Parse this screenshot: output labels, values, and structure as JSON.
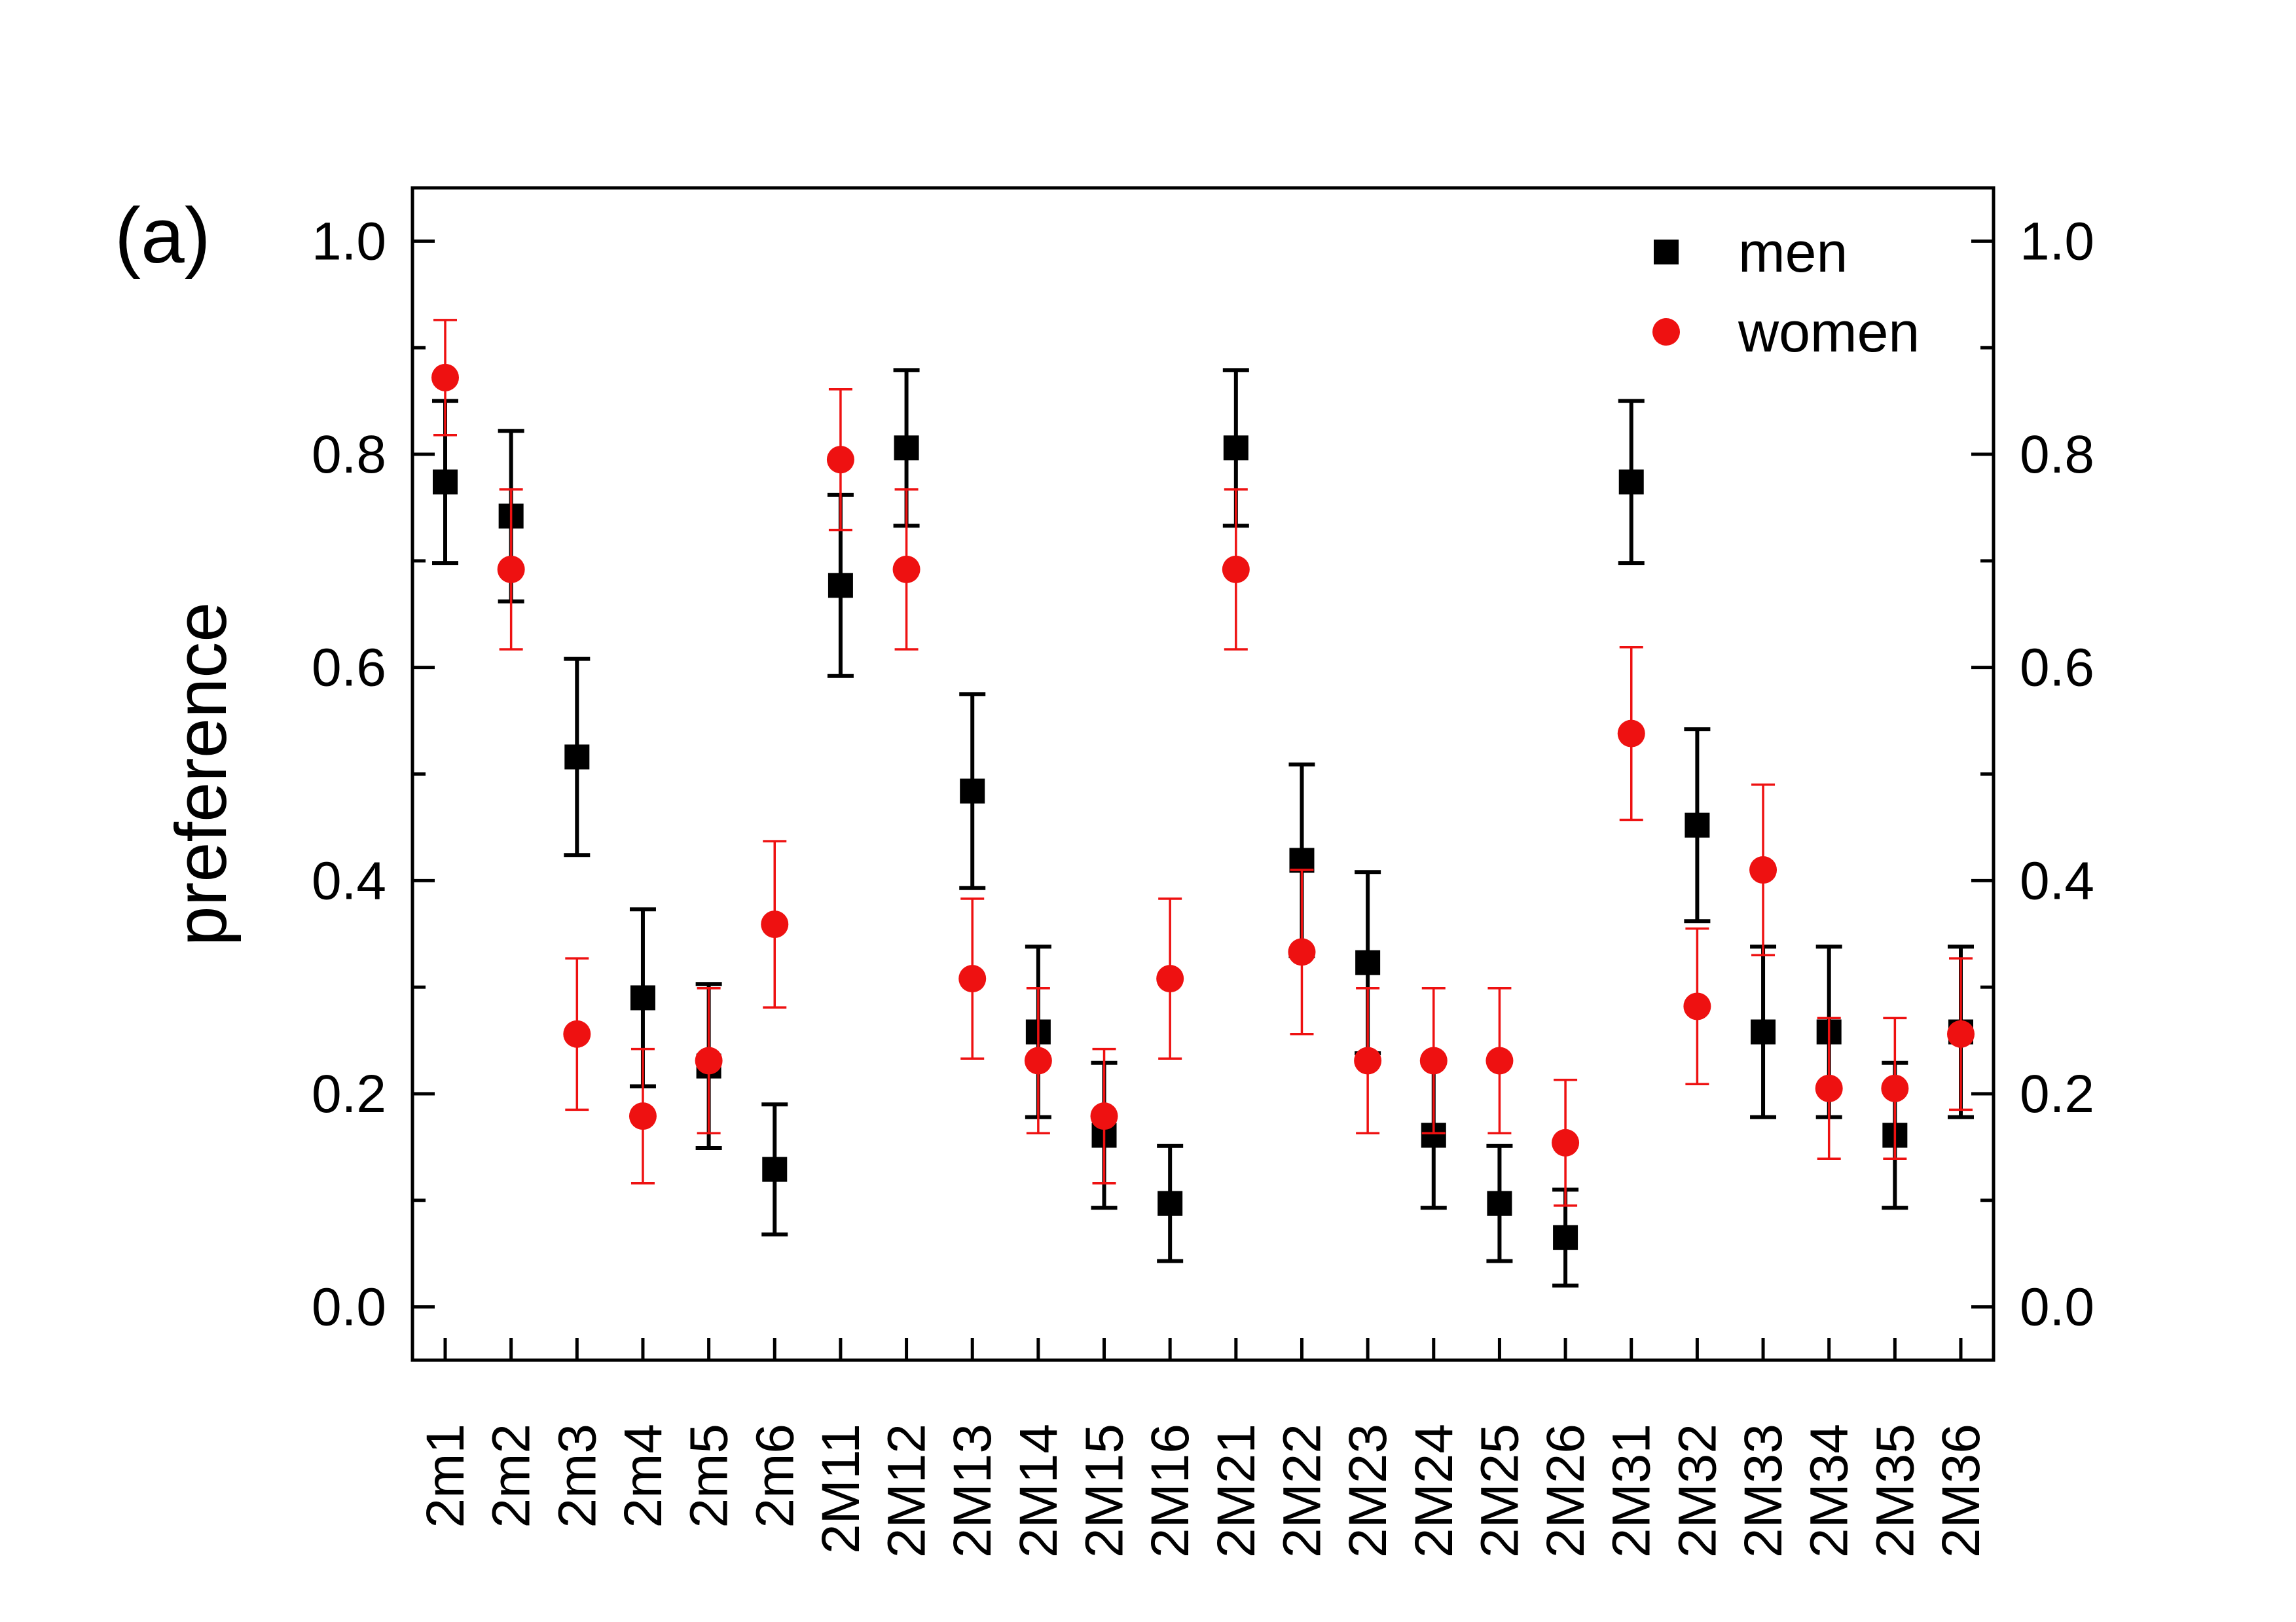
{
  "panel_label": "(a)",
  "chart_data": {
    "type": "scatter",
    "title": "",
    "xlabel": "",
    "ylabel": "preference",
    "ylim": [
      -0.05,
      1.05
    ],
    "yticks": [
      0.0,
      0.2,
      0.4,
      0.6,
      0.8,
      1.0
    ],
    "ytick_labels": [
      "0.0",
      "0.2",
      "0.4",
      "0.6",
      "0.8",
      "1.0"
    ],
    "right_axis_mirrored": true,
    "legend_position": "top-right",
    "categories": [
      "2m1",
      "2m2",
      "2m3",
      "2m4",
      "2m5",
      "2m6",
      "2M11",
      "2M12",
      "2M13",
      "2M14",
      "2M15",
      "2M16",
      "2M21",
      "2M22",
      "2M23",
      "2M24",
      "2M25",
      "2M26",
      "2M31",
      "2M32",
      "2M33",
      "2M34",
      "2M35",
      "2M36"
    ],
    "series": [
      {
        "name": "men",
        "marker": "square",
        "color": "#000000",
        "values": [
          0.774,
          0.742,
          0.516,
          0.29,
          0.226,
          0.129,
          0.677,
          0.806,
          0.484,
          0.258,
          0.161,
          0.097,
          0.806,
          0.419,
          0.323,
          0.161,
          0.097,
          0.065,
          0.774,
          0.452,
          0.258,
          0.258,
          0.161,
          0.258
        ],
        "errors": [
          0.076,
          0.08,
          0.092,
          0.083,
          0.077,
          0.061,
          0.085,
          0.073,
          0.091,
          0.08,
          0.068,
          0.054,
          0.073,
          0.09,
          0.085,
          0.068,
          0.054,
          0.045,
          0.076,
          0.09,
          0.08,
          0.08,
          0.068,
          0.08
        ]
      },
      {
        "name": "women",
        "marker": "circle",
        "color": "#ee1111",
        "values": [
          0.872,
          0.692,
          0.256,
          0.179,
          0.231,
          0.359,
          0.795,
          0.692,
          0.308,
          0.231,
          0.179,
          0.308,
          0.692,
          0.333,
          0.231,
          0.231,
          0.231,
          0.154,
          0.538,
          0.282,
          0.41,
          0.205,
          0.205,
          0.256
        ],
        "errors": [
          0.054,
          0.075,
          0.071,
          0.063,
          0.068,
          0.078,
          0.066,
          0.075,
          0.075,
          0.068,
          0.063,
          0.075,
          0.075,
          0.077,
          0.068,
          0.068,
          0.068,
          0.059,
          0.081,
          0.073,
          0.08,
          0.066,
          0.066,
          0.071
        ]
      }
    ]
  }
}
